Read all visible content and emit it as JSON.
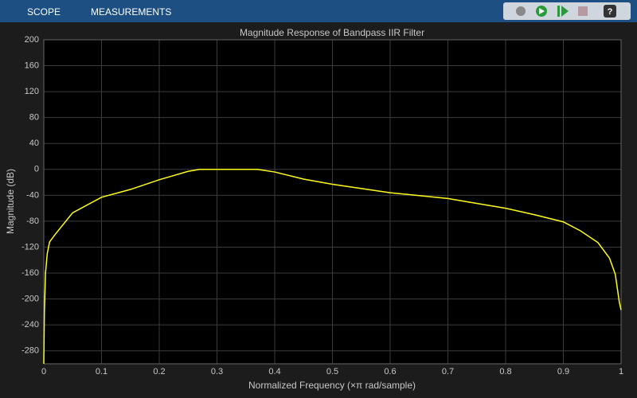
{
  "toolbar": {
    "tabs": [
      "SCOPE",
      "MEASUREMENTS"
    ]
  },
  "chart_data": {
    "type": "line",
    "title": "Magnitude Response of Bandpass IIR Filter",
    "x_label": "Normalized Frequency (×π rad/sample)",
    "y_label": "Magnitude (dB)",
    "x": [
      0,
      0.001,
      0.003,
      0.006,
      0.01,
      0.02,
      0.05,
      0.1,
      0.15,
      0.2,
      0.25,
      0.27,
      0.3,
      0.37,
      0.4,
      0.45,
      0.5,
      0.6,
      0.7,
      0.8,
      0.85,
      0.9,
      0.93,
      0.96,
      0.98,
      0.99,
      0.997,
      1
    ],
    "series": [
      {
        "name": "Magnitude",
        "color": "#ffff1a",
        "values": [
          -300,
          -220,
          -160,
          -130,
          -112,
          -100,
          -67,
          -43,
          -31,
          -16,
          -3,
          0,
          0,
          0,
          -4,
          -15,
          -23,
          -36,
          -45,
          -60,
          -70,
          -81,
          -95,
          -113,
          -137,
          -162,
          -205,
          -217
        ]
      }
    ],
    "xlim": [
      0,
      1
    ],
    "ylim": [
      -300,
      200
    ],
    "xticks": [
      0,
      0.1,
      0.2,
      0.3,
      0.4,
      0.5,
      0.6,
      0.7,
      0.8,
      0.9,
      1
    ],
    "yticks": [
      -280,
      -240,
      -200,
      -160,
      -120,
      -80,
      -40,
      0,
      40,
      80,
      120,
      160,
      200
    ],
    "grid": true
  }
}
